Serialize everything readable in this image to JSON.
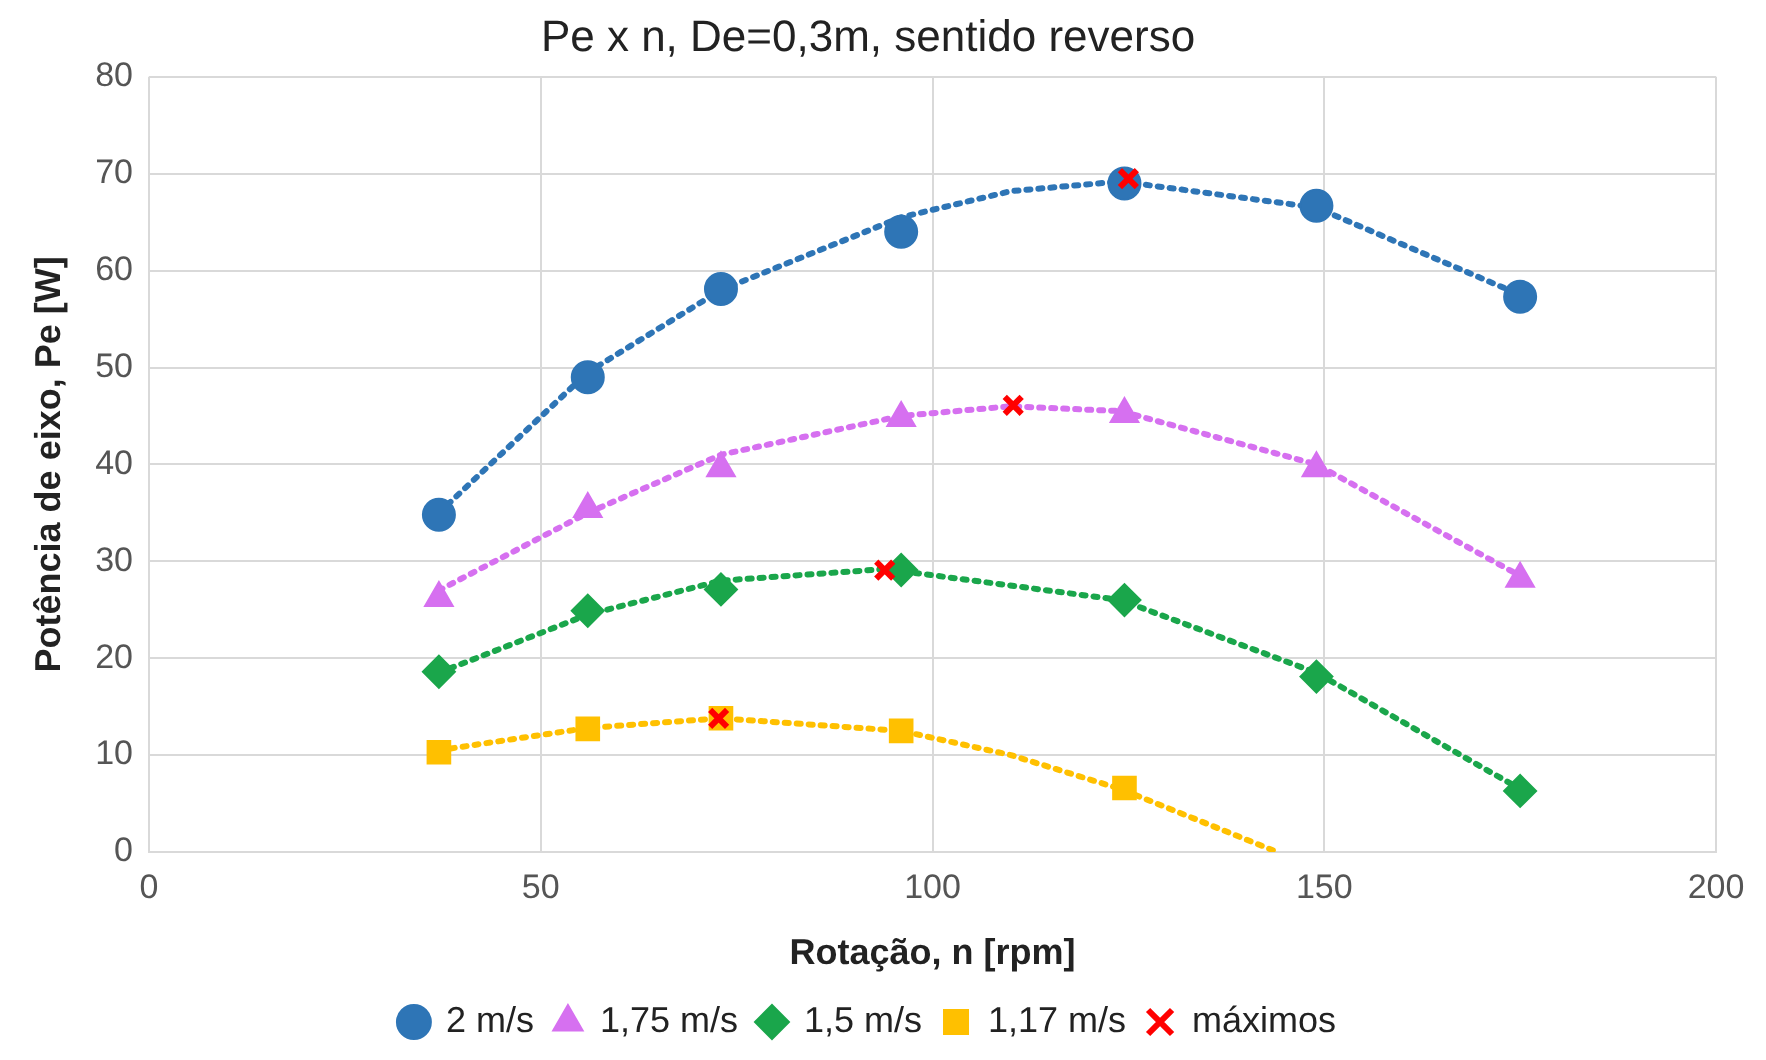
{
  "chart_data": {
    "type": "scatter",
    "title": "Pe x n, De=0,3m, sentido reverso",
    "xlabel": "Rotação, n [rpm]",
    "ylabel": "Potência de eixo, Pe [W]",
    "xlim": [
      0,
      200
    ],
    "xticks": [
      0,
      50,
      100,
      150,
      200
    ],
    "ylim": [
      0,
      80
    ],
    "yticks": [
      0,
      10,
      20,
      30,
      40,
      50,
      60,
      70,
      80
    ],
    "grid": true,
    "legend": "bottom",
    "series": [
      {
        "name": "2 m/s",
        "color": "#2e75b6",
        "marker": "circle",
        "x": [
          37,
          56,
          73,
          96,
          124.5,
          149,
          175
        ],
        "values": [
          34.8,
          49,
          58.1,
          64,
          69,
          66.7,
          57.3
        ]
      },
      {
        "name": "1,75 m/s",
        "color": "#d670f0",
        "marker": "triangle",
        "x": [
          37,
          56,
          73,
          96,
          124.5,
          149,
          175
        ],
        "values": [
          26.2,
          35.4,
          39.6,
          44.8,
          45.2,
          39.6,
          28.2
        ]
      },
      {
        "name": "1,5 m/s",
        "color": "#1aa64b",
        "marker": "diamond",
        "x": [
          37,
          56,
          73,
          96,
          124.5,
          149,
          175
        ],
        "values": [
          18.6,
          24.9,
          27.1,
          29.1,
          26,
          18.1,
          6.3
        ]
      },
      {
        "name": "1,17 m/s",
        "color": "#ffc000",
        "marker": "square",
        "x": [
          37,
          56,
          73,
          96,
          124.5
        ],
        "values": [
          10.3,
          12.7,
          13.8,
          12.5,
          6.6
        ]
      },
      {
        "name": "máximos",
        "color": "#ff0000",
        "marker": "cross",
        "x": [
          125,
          110.3,
          93.9,
          72.7
        ],
        "values": [
          69.5,
          46.1,
          29.1,
          13.8
        ]
      },
      {
        "type": "line",
        "color": "#2e75b6",
        "marker": "none",
        "line_style": "dotted",
        "x": [
          37,
          56,
          73,
          96,
          110,
          124,
          149,
          175
        ],
        "values": [
          35,
          49.5,
          58,
          65.5,
          68.2,
          69.2,
          66.5,
          57.5
        ]
      },
      {
        "type": "line",
        "color": "#d670f0",
        "marker": "none",
        "line_style": "dotted",
        "x": [
          37,
          56,
          73,
          96,
          110,
          124,
          149,
          175
        ],
        "values": [
          27,
          35,
          41,
          45,
          46,
          45.5,
          40,
          28.5
        ]
      },
      {
        "type": "line",
        "color": "#1aa64b",
        "marker": "none",
        "line_style": "dotted",
        "x": [
          37,
          56,
          73,
          94,
          124,
          149,
          175
        ],
        "values": [
          18.5,
          24.5,
          28,
          29.2,
          26,
          18.5,
          6.5
        ]
      },
      {
        "type": "line",
        "color": "#ffc000",
        "marker": "none",
        "line_style": "dotted",
        "x": [
          37,
          56,
          73,
          96,
          110,
          124,
          144
        ],
        "values": [
          10.5,
          12.8,
          13.8,
          12.5,
          10,
          6.5,
          0
        ]
      }
    ]
  }
}
